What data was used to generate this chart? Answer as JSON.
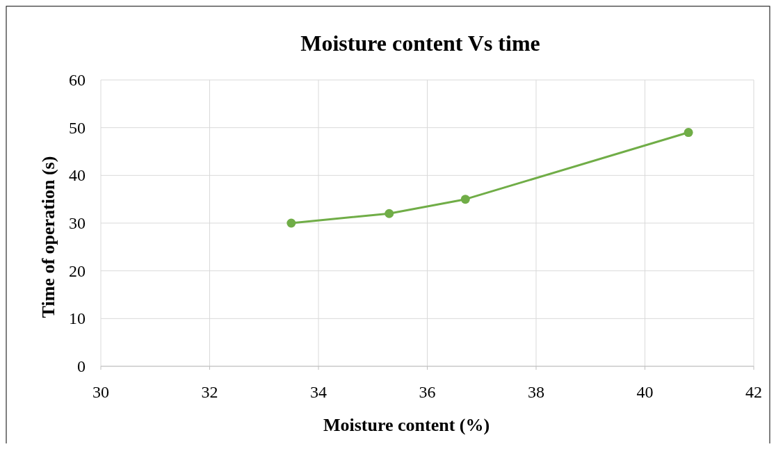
{
  "chart_data": {
    "type": "line",
    "title": "Moisture content Vs time",
    "xlabel": "Moisture content (%)",
    "ylabel": "Time of operation (s)",
    "x": [
      33.5,
      35.3,
      36.7,
      40.8
    ],
    "series": [
      {
        "color": "#70ad47",
        "values": [
          30,
          32,
          35,
          49
        ]
      }
    ],
    "xlim": [
      30,
      42
    ],
    "xticks": [
      30,
      32,
      34,
      36,
      38,
      40,
      42
    ],
    "ylim": [
      0,
      60
    ],
    "yticks": [
      0,
      10,
      20,
      30,
      40,
      50,
      60
    ],
    "grid": true,
    "marker": "circle",
    "line_style": "solid"
  }
}
